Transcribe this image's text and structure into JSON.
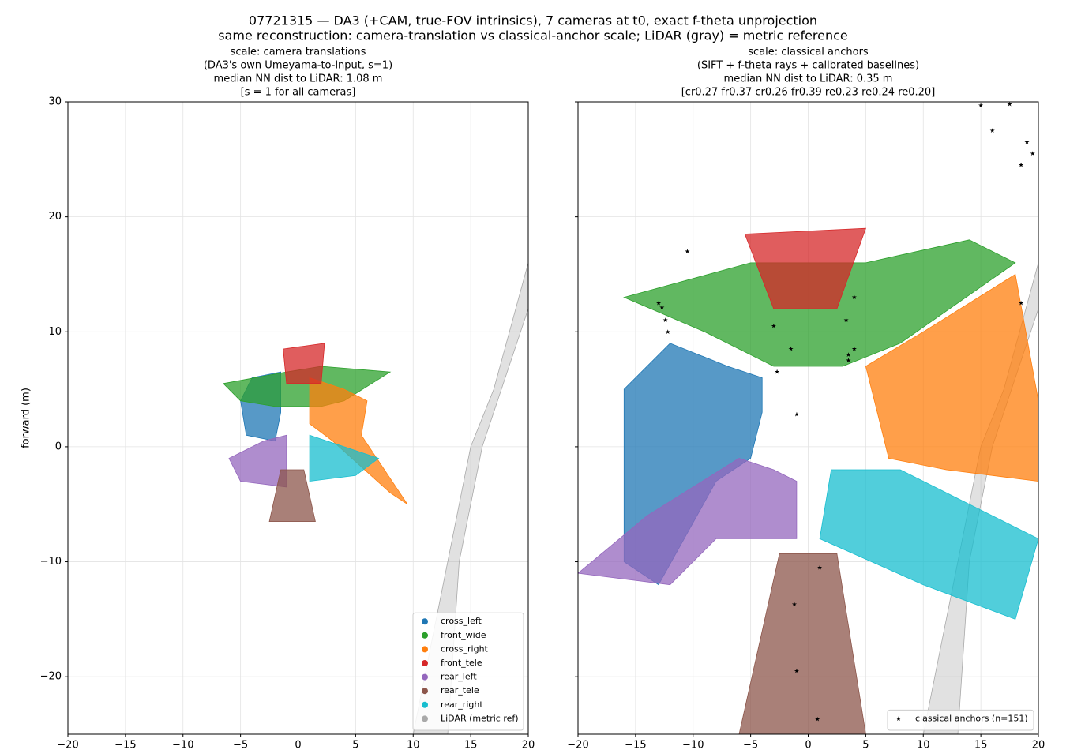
{
  "figure_title": [
    "07721315 — DA3 (+CAM, true-FOV intrinsics), 7 cameras at t0, exact f-theta unprojection",
    "same reconstruction: camera-translation vs classical-anchor scale; LiDAR (gray) = metric reference"
  ],
  "chart_data": [
    {
      "type": "scatter",
      "title": [
        "scale: camera translations",
        "(DA3's own Umeyama-to-input, s=1)",
        "median NN dist to LiDAR: 1.08 m",
        "[s = 1 for all cameras]"
      ],
      "ylabel": "forward (m)",
      "xlim": [
        -20,
        20
      ],
      "ylim": [
        -25,
        30
      ],
      "xticks": [
        {
          "value": -20,
          "label": "−20"
        },
        {
          "value": -15,
          "label": "−15"
        },
        {
          "value": -10,
          "label": "−10"
        },
        {
          "value": -5,
          "label": "−5"
        },
        0,
        5,
        10,
        15,
        20
      ],
      "yticks": [
        {
          "value": -20,
          "label": "−20"
        },
        {
          "value": -10,
          "label": "−10"
        },
        0,
        10,
        20,
        30
      ],
      "grid": true,
      "legend": "lower right",
      "series": [
        {
          "name": "cross_left",
          "color": "#1f77b4",
          "x": [
            -1.5,
            -4,
            -5,
            -4.5,
            -2,
            -1.5
          ],
          "y": [
            6.5,
            6,
            4,
            1,
            0.5,
            3
          ]
        },
        {
          "name": "front_wide",
          "color": "#2ca02c",
          "x": [
            -6.5,
            -1,
            2,
            8,
            4,
            2,
            -2,
            -5
          ],
          "y": [
            5.5,
            6.5,
            7,
            6.5,
            4,
            3.5,
            3.5,
            4
          ]
        },
        {
          "name": "cross_right",
          "color": "#ff7f0e",
          "x": [
            1,
            4,
            6,
            5.5,
            9.5,
            8,
            3,
            1
          ],
          "y": [
            6,
            5,
            4,
            1,
            -5,
            -4,
            0.5,
            2
          ]
        },
        {
          "name": "front_tele",
          "color": "#d62728",
          "x": [
            -1,
            2,
            2.3,
            -1.3
          ],
          "y": [
            5.5,
            5.5,
            9,
            8.5
          ]
        },
        {
          "name": "rear_left",
          "color": "#9467bd",
          "x": [
            -1,
            -3,
            -6,
            -5,
            -1
          ],
          "y": [
            1,
            0.5,
            -1,
            -3,
            -3.5
          ]
        },
        {
          "name": "rear_tele",
          "color": "#8c564b",
          "x": [
            -1.5,
            0.5,
            1.5,
            -2.5
          ],
          "y": [
            -2,
            -2,
            -6.5,
            -6.5
          ]
        },
        {
          "name": "rear_right",
          "color": "#17becf",
          "x": [
            1,
            4,
            7,
            5,
            1
          ],
          "y": [
            1,
            0,
            -1,
            -2.5,
            -3
          ]
        },
        {
          "name": "LiDAR (metric ref)",
          "color": "#a9a9a9",
          "x": [
            10,
            13,
            14,
            16,
            20,
            20,
            17,
            15,
            13,
            11
          ],
          "y": [
            -25,
            -25,
            -10,
            0,
            12,
            16,
            5,
            0,
            -10,
            -20
          ]
        }
      ]
    },
    {
      "type": "scatter",
      "title": [
        "scale: classical anchors",
        "(SIFT + f-theta rays + calibrated baselines)",
        "median NN dist to LiDAR: 0.35 m",
        "[cr0.27 fr0.37 cr0.26 fr0.39 re0.23 re0.24 re0.20]"
      ],
      "xlim": [
        -20,
        20
      ],
      "ylim": [
        -25,
        30
      ],
      "xticks": [
        {
          "value": -20,
          "label": "−20"
        },
        {
          "value": -15,
          "label": "−15"
        },
        {
          "value": -10,
          "label": "−10"
        },
        {
          "value": -5,
          "label": "−5"
        },
        0,
        5,
        10,
        15,
        20
      ],
      "yticks": [
        -20,
        -10,
        0,
        10,
        20,
        30
      ],
      "grid": true,
      "legend": "lower right",
      "series": [
        {
          "color": "#a9a9a9",
          "x": [
            10,
            13,
            14,
            16,
            20,
            20,
            17,
            15,
            13,
            11
          ],
          "y": [
            -25,
            -25,
            -10,
            0,
            12,
            16,
            5,
            0,
            -10,
            -20
          ]
        },
        {
          "color": "#1f77b4",
          "x": [
            -4,
            -7,
            -12,
            -16,
            -16,
            -13,
            -8,
            -5,
            -4
          ],
          "y": [
            6,
            7,
            9,
            5,
            -10,
            -12,
            -3,
            -1,
            3
          ]
        },
        {
          "color": "#2ca02c",
          "x": [
            -16,
            -5,
            5,
            14,
            18,
            8,
            3,
            -3,
            -9
          ],
          "y": [
            13,
            16,
            16,
            18,
            16,
            9,
            7,
            7,
            10
          ]
        },
        {
          "color": "#ff7f0e",
          "x": [
            5,
            10,
            18,
            20,
            20,
            12,
            7,
            6
          ],
          "y": [
            7,
            10,
            15,
            4,
            -3,
            -2,
            -1,
            3
          ]
        },
        {
          "color": "#d62728",
          "x": [
            -5.5,
            5,
            2.5,
            -3
          ],
          "y": [
            18.5,
            19,
            12,
            12
          ]
        },
        {
          "color": "#9467bd",
          "x": [
            -6,
            -3,
            -1,
            -1,
            -8,
            -12,
            -20,
            -14
          ],
          "y": [
            -1,
            -2,
            -3,
            -8,
            -8,
            -12,
            -11,
            -6
          ]
        },
        {
          "color": "#8c564b",
          "x": [
            -2.5,
            2.5,
            5,
            -6
          ],
          "y": [
            -9.3,
            -9.3,
            -25,
            -25
          ]
        },
        {
          "color": "#17becf",
          "x": [
            2,
            8,
            14,
            20,
            18,
            10,
            1
          ],
          "y": [
            -2,
            -2,
            -5,
            -8,
            -15,
            -12,
            -8
          ]
        },
        {
          "name": "classical anchors (n=151)",
          "color": "#000000",
          "marker": "star",
          "x": [
            -13,
            -12.7,
            -12.4,
            -12.2,
            -10.5,
            -3,
            -1.5,
            -2.7,
            -1,
            3.3,
            4,
            4,
            3.5,
            -1,
            1,
            -1.2,
            15,
            17.5,
            16,
            19,
            19.5,
            18.5,
            18.5,
            3.5,
            0.8
          ],
          "y": [
            12.5,
            12.1,
            11,
            10,
            17,
            10.5,
            8.5,
            6.5,
            2.8,
            11,
            13,
            8.5,
            7.5,
            -19.5,
            -10.5,
            -13.7,
            29.7,
            29.8,
            27.5,
            26.5,
            25.5,
            24.5,
            12.5,
            8,
            -23.7
          ]
        }
      ]
    }
  ]
}
